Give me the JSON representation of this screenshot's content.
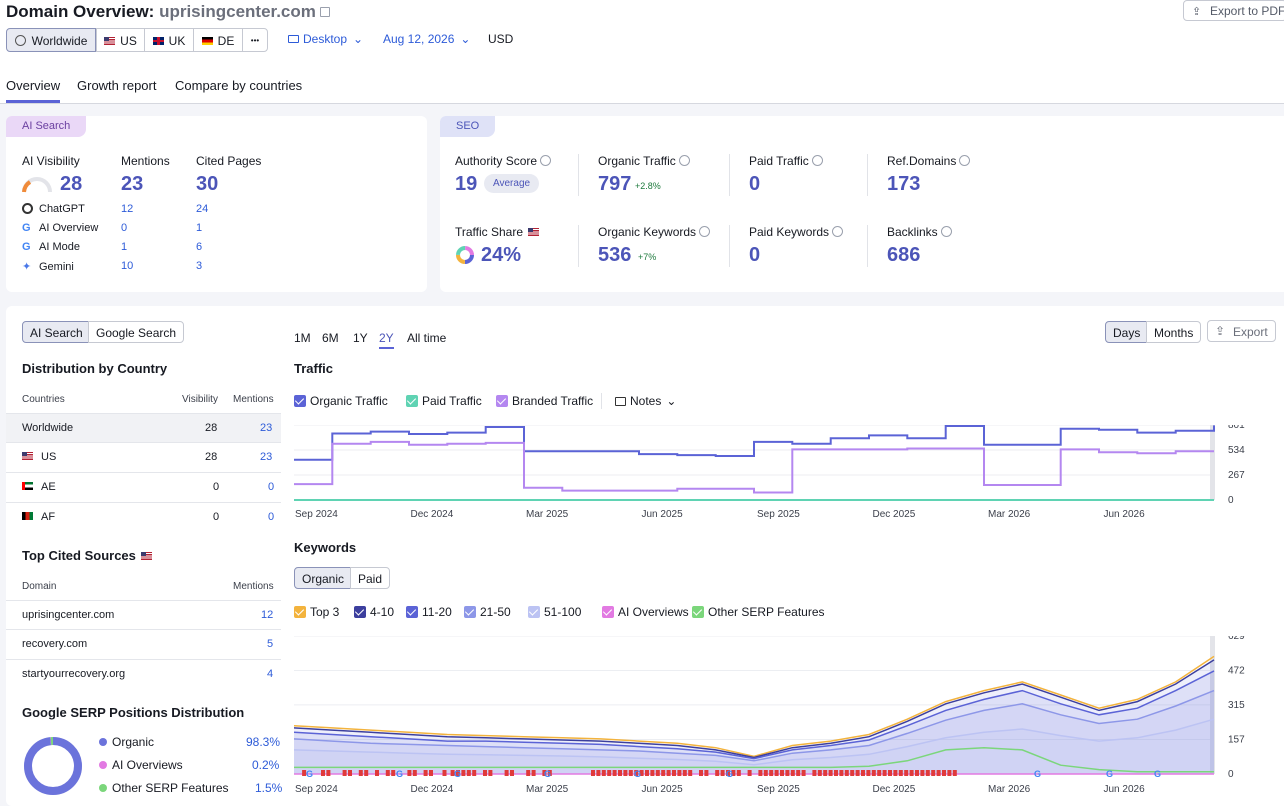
{
  "header": {
    "title_prefix": "Domain Overview:",
    "domain": "uprisingcenter.com",
    "export_pdf": "Export to PDF",
    "db": [
      {
        "label": "Worldwide"
      },
      {
        "label": "US"
      },
      {
        "label": "UK"
      },
      {
        "label": "DE"
      }
    ],
    "more": "•••",
    "device": "Desktop",
    "date": "Aug 12, 2026",
    "currency": "USD"
  },
  "tabs": [
    "Overview",
    "Growth report",
    "Compare by countries"
  ],
  "ai": {
    "pill": "AI Search",
    "visibility_label": "AI Visibility",
    "visibility": "28",
    "mentions_label": "Mentions",
    "mentions": "23",
    "cited_label": "Cited Pages",
    "cited": "30",
    "rows": [
      {
        "name": "ChatGPT",
        "mentions": "12",
        "cited": "24"
      },
      {
        "name": "AI Overview",
        "mentions": "0",
        "cited": "1"
      },
      {
        "name": "AI Mode",
        "mentions": "1",
        "cited": "6"
      },
      {
        "name": "Gemini",
        "mentions": "10",
        "cited": "3"
      }
    ]
  },
  "seo": {
    "pill": "SEO",
    "authority_label": "Authority Score",
    "authority": "19",
    "authority_badge": "Average",
    "organic_label": "Organic Traffic",
    "organic": "797",
    "organic_delta": "+2.8%",
    "paid_label": "Paid Traffic",
    "paid": "0",
    "ref_label": "Ref.Domains",
    "ref": "173",
    "share_label": "Traffic Share",
    "share": "24%",
    "okw_label": "Organic Keywords",
    "okw": "536",
    "okw_delta": "+7%",
    "pkw_label": "Paid Keywords",
    "pkw": "0",
    "bl_label": "Backlinks",
    "bl": "686"
  },
  "left": {
    "toggle": [
      "AI Search",
      "Google Search"
    ],
    "dist_title": "Distribution by Country",
    "col_countries": "Countries",
    "col_visibility": "Visibility",
    "col_mentions": "Mentions",
    "countries": [
      {
        "name": "Worldwide",
        "visibility": "28",
        "mentions": "23"
      },
      {
        "name": "US",
        "visibility": "28",
        "mentions": "23"
      },
      {
        "name": "AE",
        "visibility": "0",
        "mentions": "0"
      },
      {
        "name": "AF",
        "visibility": "0",
        "mentions": "0"
      }
    ],
    "cited_title": "Top Cited Sources",
    "col_domain": "Domain",
    "col_mentions2": "Mentions",
    "sources": [
      {
        "domain": "uprisingcenter.com",
        "mentions": "12"
      },
      {
        "domain": "recovery.com",
        "mentions": "5"
      },
      {
        "domain": "startyourrecovery.org",
        "mentions": "4"
      }
    ],
    "serp_title": "Google SERP Positions Distribution",
    "serp": [
      {
        "name": "Organic",
        "value": "98.3%",
        "color": "#6b73db"
      },
      {
        "name": "AI Overviews",
        "value": "0.2%",
        "color": "#e27ae2"
      },
      {
        "name": "Other SERP Features",
        "value": "1.5%",
        "color": "#7bd67b"
      }
    ]
  },
  "controls": {
    "ranges": [
      "1M",
      "6M",
      "1Y",
      "2Y",
      "All time"
    ],
    "days": "Days",
    "months": "Months",
    "export": "Export"
  },
  "traffic": {
    "title": "Traffic",
    "legend": [
      {
        "name": "Organic Traffic",
        "color": "#5b63d6"
      },
      {
        "name": "Paid Traffic",
        "color": "#5fd3b3"
      },
      {
        "name": "Branded Traffic",
        "color": "#b487f0"
      }
    ],
    "notes": "Notes"
  },
  "keywords": {
    "title": "Keywords",
    "toggle": [
      "Organic",
      "Paid"
    ],
    "legend": [
      {
        "name": "Top 3",
        "color": "#f3b33d"
      },
      {
        "name": "4-10",
        "color": "#3c3f9e"
      },
      {
        "name": "11-20",
        "color": "#5b63d6"
      },
      {
        "name": "21-50",
        "color": "#8d97e8"
      },
      {
        "name": "51-100",
        "color": "#bcc3f3"
      },
      {
        "name": "AI Overviews",
        "color": "#e27ae2"
      },
      {
        "name": "Other SERP Features",
        "color": "#7bd67b"
      }
    ]
  },
  "chart_data": [
    {
      "type": "line",
      "title": "Traffic",
      "x_ticks": [
        "Sep 2024",
        "Dec 2024",
        "Mar 2025",
        "Jun 2025",
        "Sep 2025",
        "Dec 2025",
        "Mar 2026",
        "Jun 2026"
      ],
      "y_ticks": [
        "801",
        "534",
        "267",
        "0"
      ],
      "ylim": [
        0,
        801
      ],
      "x": [
        "Aug 2024",
        "Sep 2024",
        "Oct 2024",
        "Nov 2024",
        "Dec 2024",
        "Jan 2025",
        "Feb 2025",
        "Mar 2025",
        "Apr 2025",
        "May 2025",
        "Jun 2025",
        "Jul 2025",
        "Aug 2025",
        "Sep 2025",
        "Oct 2025",
        "Nov 2025",
        "Dec 2025",
        "Jan 2026",
        "Feb 2026",
        "Mar 2026",
        "Apr 2026",
        "May 2026",
        "Jun 2026",
        "Jul 2026",
        "Aug 2026"
      ],
      "series": [
        {
          "name": "Organic Traffic",
          "values": [
            430,
            710,
            730,
            705,
            720,
            780,
            520,
            520,
            520,
            490,
            480,
            470,
            620,
            600,
            660,
            690,
            660,
            790,
            590,
            590,
            760,
            750,
            720,
            740,
            797
          ]
        },
        {
          "name": "Paid Traffic",
          "values": [
            0,
            0,
            0,
            0,
            0,
            0,
            0,
            0,
            0,
            0,
            0,
            0,
            0,
            0,
            0,
            0,
            0,
            0,
            0,
            0,
            0,
            0,
            0,
            0,
            0
          ]
        },
        {
          "name": "Branded Traffic",
          "values": [
            170,
            600,
            620,
            590,
            600,
            610,
            130,
            100,
            100,
            100,
            120,
            120,
            80,
            540,
            540,
            540,
            550,
            550,
            160,
            160,
            540,
            510,
            500,
            520,
            520
          ]
        }
      ]
    },
    {
      "type": "area",
      "title": "Keywords",
      "x_ticks": [
        "Sep 2024",
        "Dec 2024",
        "Mar 2025",
        "Jun 2025",
        "Sep 2025",
        "Dec 2025",
        "Mar 2026",
        "Jun 2026"
      ],
      "y_ticks": [
        "629",
        "472",
        "315",
        "157",
        "0"
      ],
      "ylim": [
        0,
        629
      ],
      "x": [
        "Aug 2024",
        "Sep 2024",
        "Oct 2024",
        "Nov 2024",
        "Dec 2024",
        "Jan 2025",
        "Feb 2025",
        "Mar 2025",
        "Apr 2025",
        "May 2025",
        "Jun 2025",
        "Jul 2025",
        "Aug 2025",
        "Sep 2025",
        "Oct 2025",
        "Nov 2025",
        "Dec 2025",
        "Jan 2026",
        "Feb 2026",
        "Mar 2026",
        "Apr 2026",
        "May 2026",
        "Jun 2026",
        "Jul 2026",
        "Aug 2026"
      ],
      "series": [
        {
          "name": "Top 3",
          "values": [
            220,
            210,
            200,
            190,
            180,
            175,
            170,
            165,
            160,
            150,
            140,
            120,
            80,
            130,
            150,
            180,
            250,
            330,
            380,
            420,
            360,
            300,
            340,
            420,
            536
          ]
        },
        {
          "name": "4-10",
          "values": [
            210,
            200,
            190,
            180,
            170,
            165,
            160,
            155,
            150,
            140,
            130,
            110,
            75,
            120,
            140,
            170,
            240,
            320,
            370,
            410,
            350,
            290,
            330,
            410,
            520
          ]
        },
        {
          "name": "11-20",
          "values": [
            190,
            180,
            170,
            160,
            150,
            150,
            145,
            140,
            135,
            125,
            115,
            100,
            70,
            110,
            130,
            155,
            220,
            290,
            340,
            380,
            320,
            270,
            300,
            380,
            470
          ]
        },
        {
          "name": "21-50",
          "values": [
            160,
            150,
            140,
            135,
            130,
            125,
            120,
            115,
            110,
            105,
            95,
            85,
            60,
            95,
            110,
            130,
            185,
            245,
            290,
            320,
            270,
            230,
            250,
            310,
            380
          ]
        },
        {
          "name": "51-100",
          "values": [
            110,
            105,
            100,
            95,
            90,
            88,
            85,
            82,
            78,
            72,
            66,
            58,
            42,
            65,
            75,
            90,
            125,
            165,
            190,
            205,
            175,
            150,
            165,
            200,
            250
          ]
        },
        {
          "name": "AI Overviews",
          "values": [
            0,
            0,
            0,
            0,
            0,
            0,
            0,
            0,
            0,
            0,
            0,
            0,
            0,
            0,
            0,
            0,
            0,
            0,
            0,
            0,
            0,
            0,
            0,
            0,
            0
          ]
        },
        {
          "name": "Other SERP Features",
          "values": [
            30,
            30,
            30,
            30,
            30,
            30,
            30,
            30,
            30,
            30,
            30,
            30,
            30,
            30,
            30,
            35,
            60,
            110,
            120,
            110,
            40,
            20,
            10,
            10,
            10
          ]
        }
      ]
    },
    {
      "type": "pie",
      "title": "Google SERP Positions Distribution",
      "categories": [
        "Organic",
        "AI Overviews",
        "Other SERP Features"
      ],
      "values": [
        98.3,
        0.2,
        1.5
      ]
    }
  ]
}
